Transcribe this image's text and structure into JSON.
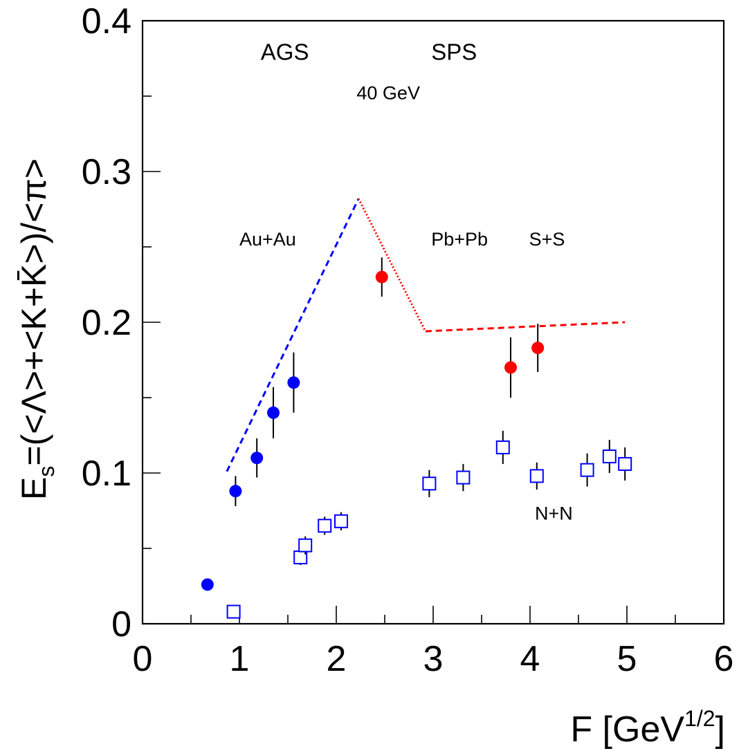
{
  "chart_data": {
    "type": "scatter",
    "xlabel": "F [GeV",
    "xlabel_sup": "1/2",
    "xlabel_close": "]",
    "ylabel": "E",
    "ylabel_sub": "s",
    "ylabel_rest": "=(<Λ>+<K+K̄>)/<π>",
    "xlim": [
      0,
      6
    ],
    "ylim": [
      0,
      0.4
    ],
    "x_major_ticks": [
      0,
      1,
      2,
      3,
      4,
      5,
      6
    ],
    "x_tick_labels": [
      "0",
      "1",
      "2",
      "3",
      "4",
      "5",
      "6"
    ],
    "x_minor_step": 0.5,
    "y_major_ticks": [
      0,
      0.1,
      0.2,
      0.3,
      0.4
    ],
    "y_tick_labels": [
      "0",
      "0.1",
      "0.2",
      "0.3",
      "0.4"
    ],
    "y_minor_step": 0.05,
    "grid": false,
    "annotations": [
      {
        "text": "AGS",
        "x": 1.22,
        "y": 0.374,
        "size": "big"
      },
      {
        "text": "SPS",
        "x": 2.98,
        "y": 0.374,
        "size": "big"
      },
      {
        "text": "40 GeV",
        "x": 2.21,
        "y": 0.348,
        "size": "normal"
      },
      {
        "text": "Au+Au",
        "x": 1.0,
        "y": 0.251,
        "size": "normal"
      },
      {
        "text": "Pb+Pb",
        "x": 2.98,
        "y": 0.251,
        "size": "normal"
      },
      {
        "text": "S+S",
        "x": 3.99,
        "y": 0.251,
        "size": "normal"
      },
      {
        "text": "N+N",
        "x": 4.05,
        "y": 0.069,
        "size": "normal"
      }
    ],
    "series": [
      {
        "marker": "filled-circle",
        "color": "#0000ff",
        "points": [
          {
            "x": 0.67,
            "y": 0.026,
            "err": 0
          },
          {
            "x": 0.96,
            "y": 0.088,
            "err": 0.01
          },
          {
            "x": 1.18,
            "y": 0.11,
            "err": 0.013
          },
          {
            "x": 1.35,
            "y": 0.14,
            "err": 0.017
          },
          {
            "x": 1.56,
            "y": 0.16,
            "err": 0.02
          }
        ]
      },
      {
        "marker": "filled-circle",
        "color": "#ff0000",
        "points": [
          {
            "x": 2.47,
            "y": 0.23,
            "err": 0.013
          },
          {
            "x": 3.8,
            "y": 0.17,
            "err": 0.02
          },
          {
            "x": 4.08,
            "y": 0.183,
            "err": 0.016
          }
        ]
      },
      {
        "marker": "open-square",
        "color": "#0000ff",
        "points": [
          {
            "x": 0.94,
            "y": 0.008,
            "err": 0
          },
          {
            "x": 1.63,
            "y": 0.044,
            "err": 0.005
          },
          {
            "x": 1.68,
            "y": 0.052,
            "err": 0.006
          },
          {
            "x": 1.88,
            "y": 0.065,
            "err": 0.006
          },
          {
            "x": 2.05,
            "y": 0.068,
            "err": 0.006
          },
          {
            "x": 2.96,
            "y": 0.093,
            "err": 0.009
          },
          {
            "x": 3.31,
            "y": 0.097,
            "err": 0.009
          },
          {
            "x": 3.72,
            "y": 0.117,
            "err": 0.011
          },
          {
            "x": 4.07,
            "y": 0.098,
            "err": 0.009
          },
          {
            "x": 4.59,
            "y": 0.102,
            "err": 0.011
          },
          {
            "x": 4.82,
            "y": 0.111,
            "err": 0.011
          },
          {
            "x": 4.98,
            "y": 0.106,
            "err": 0.011
          }
        ]
      }
    ],
    "lines": [
      {
        "color": "#0000ff",
        "dash": "dashed",
        "points": [
          [
            0.87,
            0.101
          ],
          [
            2.23,
            0.282
          ]
        ]
      },
      {
        "color": "#ff0000",
        "dash": "dotted",
        "points": [
          [
            2.23,
            0.282
          ],
          [
            2.92,
            0.194
          ]
        ]
      },
      {
        "color": "#ff0000",
        "dash": "dashed",
        "points": [
          [
            2.92,
            0.194
          ],
          [
            4.98,
            0.2
          ]
        ]
      }
    ]
  }
}
